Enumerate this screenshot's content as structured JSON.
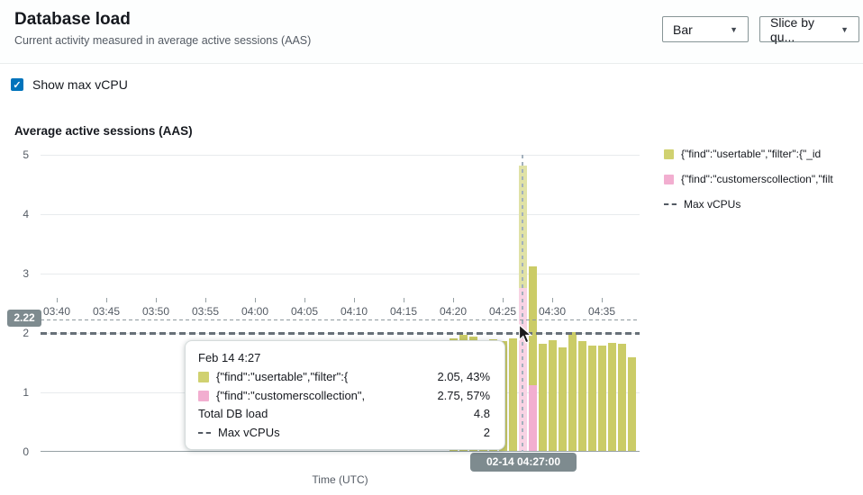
{
  "header": {
    "title": "Database load",
    "subtitle": "Current activity measured in average active sessions (AAS)",
    "chart_type_dropdown": {
      "label": "Bar"
    },
    "slice_dropdown": {
      "label": "Slice by qu..."
    }
  },
  "icons": {
    "chevron_down": "▼",
    "check": "✓"
  },
  "controls": {
    "show_max_vcpu_label": "Show max vCPU",
    "show_max_vcpu_checked": true
  },
  "chart": {
    "title": "Average active sessions (AAS)",
    "xlabel": "Time (UTC)",
    "y_ticks": [
      0,
      1,
      2,
      3,
      4,
      5
    ],
    "x_ticks": [
      "03:40",
      "03:45",
      "03:50",
      "03:55",
      "04:00",
      "04:05",
      "04:10",
      "04:15",
      "04:20",
      "04:25",
      "04:30",
      "04:35"
    ],
    "crosshair_y_label": "2.22",
    "selected_x_label": "02-14 04:27:00"
  },
  "chart_data": {
    "type": "bar",
    "stacked": true,
    "title": "Average active sessions (AAS)",
    "xlabel": "Time (UTC)",
    "ylabel": "Average active sessions (AAS)",
    "ylim": [
      0,
      5
    ],
    "x_axis_tick_labels": [
      "03:40",
      "03:45",
      "03:50",
      "03:55",
      "04:00",
      "04:05",
      "04:10",
      "04:15",
      "04:20",
      "04:25",
      "04:30",
      "04:35"
    ],
    "categories": [
      "04:20",
      "04:21",
      "04:22",
      "04:23",
      "04:24",
      "04:25",
      "04:26",
      "04:27",
      "04:28",
      "04:29",
      "04:30",
      "04:31",
      "04:32",
      "04:33",
      "04:34",
      "04:35",
      "04:36",
      "04:37",
      "04:38"
    ],
    "series": [
      {
        "name": "{\"find\":\"usertable\",\"filter\":{\"_id",
        "color": "#cbcc67",
        "highlight_color": "#e0e2a6",
        "stack": "top",
        "values": [
          1.9,
          1.95,
          1.93,
          1.85,
          1.88,
          1.85,
          1.9,
          2.05,
          2.0,
          1.8,
          1.87,
          1.74,
          2.0,
          1.85,
          1.77,
          1.77,
          1.82,
          1.8,
          1.57
        ]
      },
      {
        "name": "{\"find\":\"customerscollection\",\"filt",
        "color": "#f2aed0",
        "highlight_color": "#f8d3e4",
        "stack": "bottom",
        "values": [
          0,
          0,
          0,
          0,
          0,
          0,
          0,
          2.75,
          1.1,
          0,
          0,
          0,
          0,
          0,
          0,
          0,
          0,
          0,
          0
        ]
      }
    ],
    "max_vcpus": 2,
    "highlighted_category": "04:27",
    "crosshair_y_value": 2.22,
    "grid": true,
    "legend_position": "right"
  },
  "legend": {
    "items": [
      {
        "type": "swatch",
        "color": "#d0d170",
        "label": "{\"find\":\"usertable\",\"filter\":{\"_id"
      },
      {
        "type": "swatch",
        "color": "#f2aed0",
        "label": "{\"find\":\"customerscollection\",\"filt"
      },
      {
        "type": "dash",
        "label": "Max vCPUs"
      }
    ]
  },
  "tooltip": {
    "title": "Feb 14 4:27",
    "rows": [
      {
        "swatch": "#d0d170",
        "label": "{\"find\":\"usertable\",\"filter\":{",
        "value": "2.05, 43%"
      },
      {
        "swatch": "#f2aed0",
        "label": "{\"find\":\"customerscollection\",",
        "value": "2.75, 57%"
      },
      {
        "label": "Total DB load",
        "value": "4.8"
      },
      {
        "dash": true,
        "label": "Max vCPUs",
        "value": "2"
      }
    ]
  },
  "colors": {
    "accent_blue": "#0073bb",
    "bar_yellow": "#cbcc67",
    "bar_pink": "#f2aed0",
    "badge_gray": "#7e8b8f",
    "max_vcpu_line": "#687078"
  }
}
